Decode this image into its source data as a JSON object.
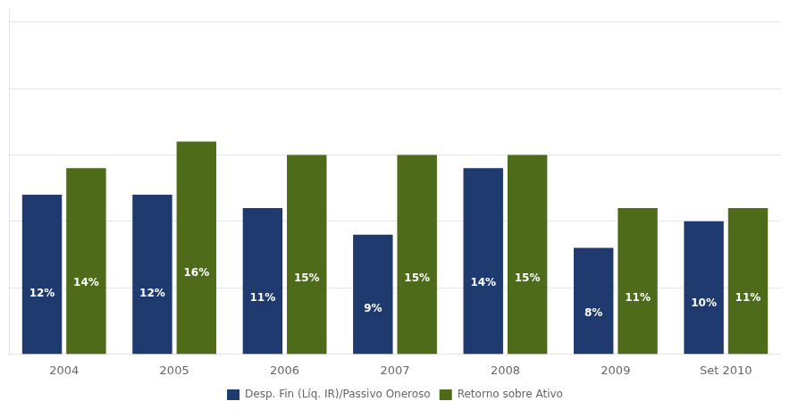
{
  "chart_data": {
    "type": "bar",
    "categories": [
      "2004",
      "2005",
      "2006",
      "2007",
      "2008",
      "2009",
      "Set 2010"
    ],
    "series": [
      {
        "name": "Desp. Fin (Líq. IR)/Passivo Oneroso",
        "color": "#1F3A6E",
        "values": [
          12,
          12,
          11,
          9,
          14,
          8,
          10
        ],
        "value_labels": [
          "12%",
          "12%",
          "11%",
          "9%",
          "14%",
          "8%",
          "10%"
        ]
      },
      {
        "name": "Retorno sobre Ativo",
        "color": "#4E6B1A",
        "values": [
          14,
          16,
          15,
          15,
          15,
          11,
          11
        ],
        "value_labels": [
          "14%",
          "16%",
          "15%",
          "15%",
          "15%",
          "11%",
          "11%"
        ]
      }
    ],
    "ylim": [
      0,
      26
    ],
    "yticks": [
      5,
      10,
      15,
      20,
      25
    ],
    "grid": true,
    "legend": "bottom",
    "data_labels": true,
    "tick_labels": "x"
  }
}
